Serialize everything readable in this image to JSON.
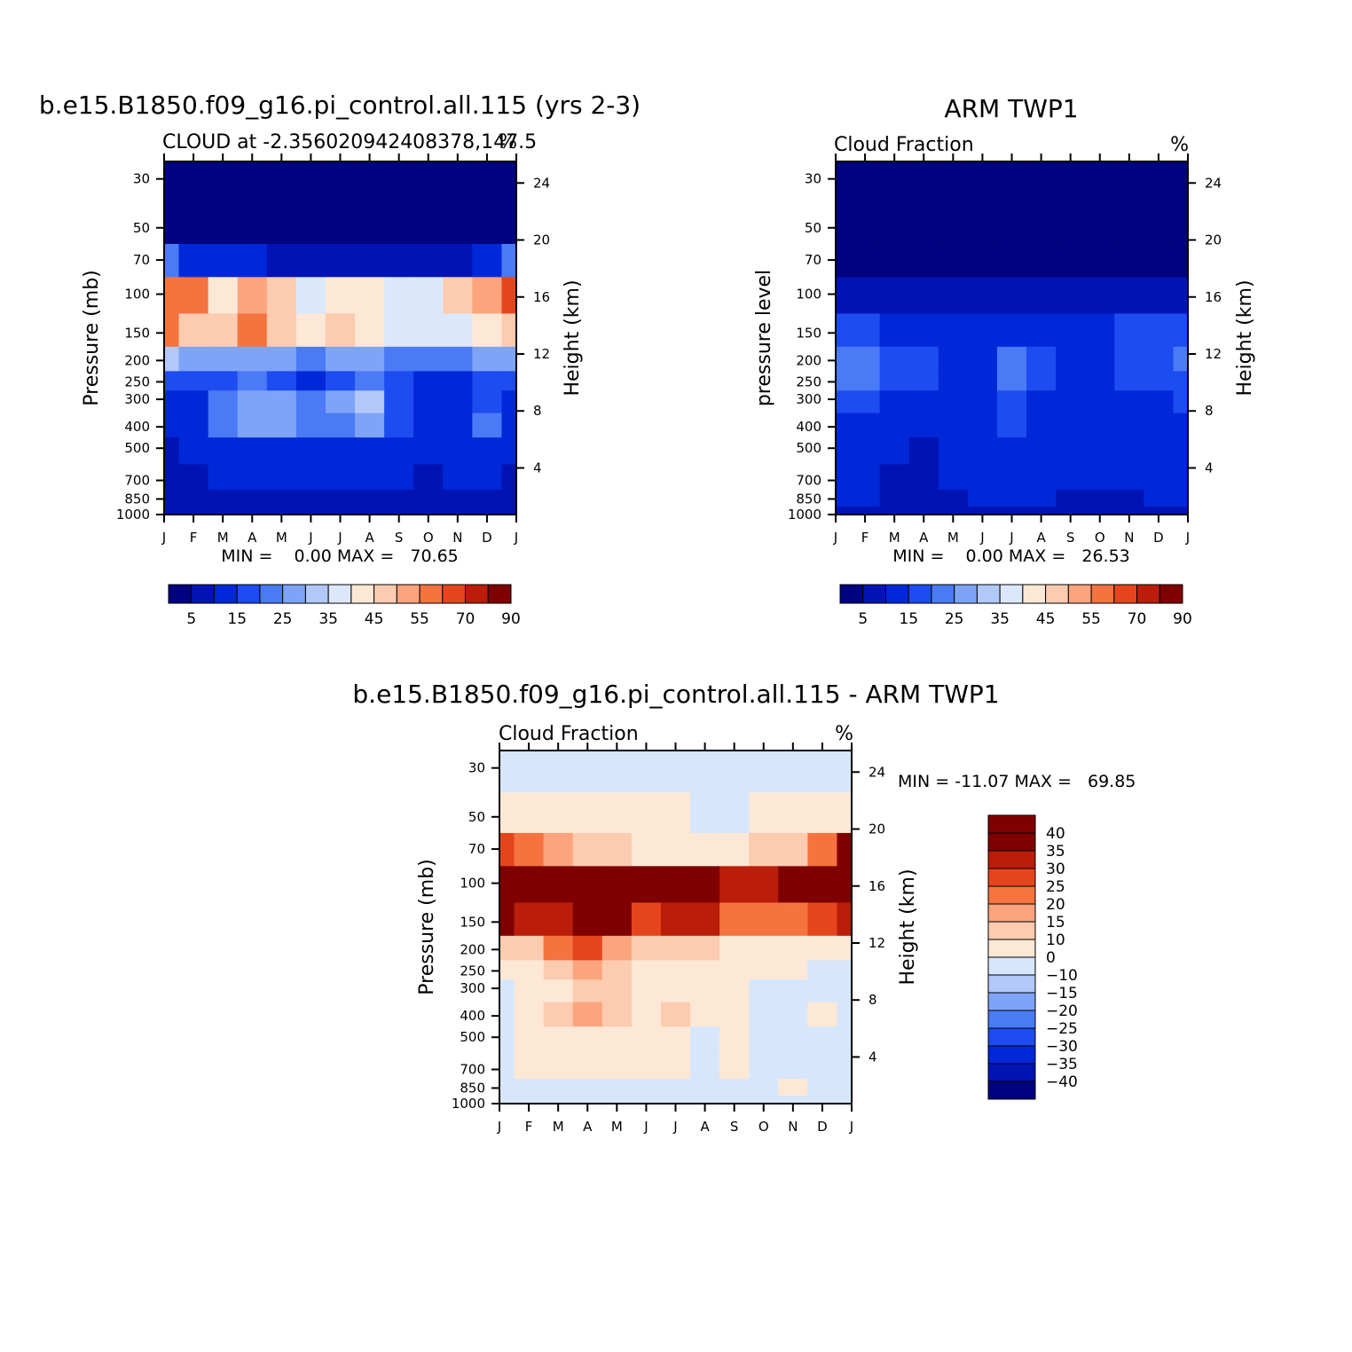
{
  "colors": {
    "palette": [
      "#00037f",
      "#0014b4",
      "#0028d8",
      "#1d4cf0",
      "#4a7af5",
      "#7ea4f7",
      "#b1c8f9",
      "#dbe8fc",
      "#fde8d6",
      "#fdcbb0",
      "#fba47e",
      "#f4733f",
      "#e4451c",
      "#ba1d09",
      "#7f0000"
    ],
    "diff_palette": [
      "#00037f",
      "#0014b4",
      "#0028d8",
      "#1d4cf0",
      "#4a7af5",
      "#7ea4f7",
      "#b1c8f9",
      "#d7e6fb",
      "#fde8d6",
      "#fdcbb0",
      "#fba47e",
      "#f4733f",
      "#e4451c",
      "#ba1d09",
      "#7f0000"
    ]
  },
  "panels": [
    {
      "title": "b.e15.B1850.f09_g16.pi_control.all.115 (yrs 2-3)",
      "subtitle_left": "CLOUD at -2.356020942408378,147.5",
      "subtitle_right": "%",
      "ylabel_left": "Pressure (mb)",
      "ylabel_right": "Height (km)",
      "stats": "MIN =    0.00 MAX =   70.65"
    },
    {
      "title": "ARM TWP1",
      "subtitle_left": "Cloud Fraction",
      "subtitle_right": "%",
      "ylabel_left": "pressure level",
      "ylabel_right": "Height (km)",
      "stats": "MIN =    0.00 MAX =   26.53"
    },
    {
      "title": "b.e15.B1850.f09_g16.pi_control.all.115 - ARM TWP1",
      "subtitle_left": "Cloud Fraction",
      "subtitle_right": "%",
      "ylabel_left": "Pressure (mb)",
      "ylabel_right": "Height (km)",
      "stats": "MIN = -11.07 MAX =   69.85"
    }
  ],
  "chart_data": [
    {
      "type": "heatmap",
      "title": "b.e15.B1850.f09_g16.pi_control.all.115 (yrs 2-3)",
      "subtitle": "CLOUD at -2.356020942408378,147.5",
      "units": "%",
      "xlabel": "",
      "ylabel": "Pressure (mb)",
      "ylabel_right": "Height (km)",
      "x_ticks": [
        "J",
        "F",
        "M",
        "A",
        "M",
        "J",
        "J",
        "A",
        "S",
        "O",
        "N",
        "D",
        "J"
      ],
      "y_ticks": [
        30,
        50,
        70,
        100,
        150,
        200,
        250,
        300,
        400,
        500,
        700,
        850,
        1000
      ],
      "y_right_ticks": [
        4,
        8,
        12,
        16,
        20,
        24
      ],
      "y_scale": "log pressure, reversed",
      "ylim": [
        1000,
        25
      ],
      "colorbar_labels": [
        "5",
        "15",
        "25",
        "35",
        "45",
        "55",
        "70",
        "90"
      ],
      "min": 0.0,
      "max": 70.65,
      "levels": [
        25,
        30,
        50,
        70,
        100,
        150,
        200,
        250,
        300,
        400,
        500,
        700,
        850,
        1000
      ],
      "values": [
        [
          0,
          0,
          0,
          0,
          0,
          0,
          0,
          0,
          0,
          0,
          0,
          0,
          0
        ],
        [
          0,
          0,
          0,
          0,
          0,
          0,
          0,
          0,
          0,
          0,
          0,
          0,
          0
        ],
        [
          2,
          1,
          0,
          0,
          0,
          0,
          0,
          0,
          0,
          0,
          0,
          0,
          2
        ],
        [
          20,
          14,
          12,
          10,
          8,
          6,
          8,
          6,
          5,
          6,
          8,
          10,
          22
        ],
        [
          58,
          55,
          42,
          52,
          45,
          38,
          44,
          40,
          38,
          35,
          46,
          54,
          60
        ],
        [
          55,
          48,
          45,
          56,
          45,
          40,
          48,
          44,
          36,
          35,
          38,
          42,
          48
        ],
        [
          30,
          28,
          26,
          25,
          26,
          24,
          26,
          26,
          22,
          20,
          22,
          25,
          28
        ],
        [
          16,
          18,
          18,
          20,
          18,
          14,
          18,
          22,
          16,
          14,
          14,
          16,
          18
        ],
        [
          12,
          14,
          24,
          28,
          26,
          22,
          26,
          32,
          16,
          12,
          14,
          18,
          14
        ],
        [
          10,
          12,
          22,
          26,
          25,
          20,
          22,
          28,
          16,
          14,
          14,
          20,
          14
        ],
        [
          8,
          10,
          12,
          12,
          14,
          12,
          14,
          14,
          14,
          10,
          12,
          14,
          10
        ],
        [
          6,
          8,
          10,
          10,
          10,
          10,
          12,
          12,
          10,
          8,
          10,
          10,
          8
        ],
        [
          5,
          6,
          8,
          8,
          8,
          8,
          8,
          8,
          8,
          6,
          8,
          8,
          6
        ],
        [
          4,
          4,
          4,
          4,
          4,
          4,
          4,
          4,
          4,
          4,
          4,
          4,
          4
        ]
      ]
    },
    {
      "type": "heatmap",
      "title": "ARM TWP1",
      "subtitle": "Cloud Fraction",
      "units": "%",
      "xlabel": "",
      "ylabel": "pressure level",
      "ylabel_right": "Height (km)",
      "x_ticks": [
        "J",
        "F",
        "M",
        "A",
        "M",
        "J",
        "J",
        "A",
        "S",
        "O",
        "N",
        "D",
        "J"
      ],
      "y_ticks": [
        30,
        50,
        70,
        100,
        150,
        200,
        250,
        300,
        400,
        500,
        700,
        850,
        1000
      ],
      "y_right_ticks": [
        4,
        8,
        12,
        16,
        20,
        24
      ],
      "y_scale": "log pressure, reversed",
      "ylim": [
        1000,
        25
      ],
      "colorbar_labels": [
        "5",
        "15",
        "25",
        "35",
        "45",
        "55",
        "70",
        "90"
      ],
      "min": 0.0,
      "max": 26.53,
      "levels": [
        25,
        30,
        50,
        70,
        100,
        150,
        200,
        250,
        300,
        400,
        500,
        700,
        850,
        1000
      ],
      "values": [
        [
          0,
          0,
          0,
          0,
          0,
          0,
          0,
          0,
          0,
          0,
          0,
          0,
          0
        ],
        [
          0,
          0,
          0,
          0,
          0,
          0,
          0,
          0,
          0,
          0,
          0,
          0,
          0
        ],
        [
          0,
          0,
          0,
          0,
          0,
          0,
          0,
          0,
          0,
          0,
          0,
          0,
          0
        ],
        [
          1,
          1,
          1,
          1,
          1,
          1,
          1,
          1,
          1,
          1,
          1,
          1,
          1
        ],
        [
          8,
          9,
          7,
          6,
          6,
          5,
          4,
          5,
          6,
          7,
          8,
          9,
          9
        ],
        [
          16,
          17,
          14,
          12,
          12,
          12,
          14,
          14,
          13,
          13,
          15,
          16,
          16
        ],
        [
          22,
          24,
          18,
          15,
          14,
          14,
          22,
          16,
          14,
          14,
          18,
          16,
          22
        ],
        [
          20,
          20,
          17,
          15,
          14,
          14,
          20,
          16,
          14,
          14,
          16,
          15,
          18
        ],
        [
          15,
          15,
          14,
          13,
          13,
          13,
          16,
          14,
          13,
          13,
          14,
          13,
          15
        ],
        [
          14,
          14,
          13,
          12,
          13,
          14,
          15,
          14,
          13,
          14,
          13,
          14,
          14
        ],
        [
          13,
          12,
          10,
          8,
          12,
          13,
          14,
          13,
          12,
          11,
          10,
          12,
          13
        ],
        [
          12,
          11,
          9,
          7,
          10,
          12,
          13,
          12,
          11,
          10,
          11,
          12,
          12
        ],
        [
          10,
          10,
          9,
          8,
          9,
          10,
          10,
          10,
          9,
          9,
          9,
          10,
          10
        ],
        [
          4,
          4,
          4,
          4,
          4,
          4,
          4,
          4,
          4,
          4,
          4,
          4,
          4
        ]
      ]
    },
    {
      "type": "heatmap",
      "title": "b.e15.B1850.f09_g16.pi_control.all.115 - ARM TWP1",
      "subtitle": "Cloud Fraction",
      "units": "%",
      "xlabel": "",
      "ylabel": "Pressure (mb)",
      "ylabel_right": "Height (km)",
      "x_ticks": [
        "J",
        "F",
        "M",
        "A",
        "M",
        "J",
        "J",
        "A",
        "S",
        "O",
        "N",
        "D",
        "J"
      ],
      "y_ticks": [
        30,
        50,
        70,
        100,
        150,
        200,
        250,
        300,
        400,
        500,
        700,
        850,
        1000
      ],
      "y_right_ticks": [
        4,
        8,
        12,
        16,
        20,
        24
      ],
      "y_scale": "log pressure, reversed",
      "ylim": [
        1000,
        25
      ],
      "colorbar_labels": [
        "40",
        "35",
        "30",
        "25",
        "20",
        "15",
        "10",
        "0",
        "-10",
        "-15",
        "-20",
        "-25",
        "-30",
        "-35",
        "-40"
      ],
      "min": -11.07,
      "max": 69.85,
      "levels": [
        25,
        30,
        50,
        70,
        100,
        150,
        200,
        250,
        300,
        400,
        500,
        700,
        850,
        1000
      ],
      "values": [
        [
          -1,
          -1,
          -1,
          -1,
          -1,
          -1,
          -1,
          -1,
          -1,
          -1,
          -1,
          -1,
          -1
        ],
        [
          -1,
          -1,
          -1,
          -1,
          -1,
          -1,
          -1,
          -1,
          -1,
          -1,
          -1,
          -1,
          -1
        ],
        [
          2,
          2,
          2,
          2,
          2,
          2,
          2,
          -1,
          -1,
          1,
          2,
          2,
          2
        ],
        [
          28,
          20,
          15,
          12,
          10,
          8,
          8,
          8,
          6,
          10,
          14,
          20,
          35
        ],
        [
          50,
          46,
          42,
          46,
          42,
          36,
          42,
          38,
          32,
          30,
          38,
          46,
          52
        ],
        [
          38,
          30,
          30,
          45,
          35,
          28,
          30,
          30,
          22,
          22,
          22,
          26,
          32
        ],
        [
          10,
          14,
          24,
          26,
          18,
          12,
          12,
          14,
          8,
          6,
          6,
          8,
          6
        ],
        [
          4,
          6,
          10,
          18,
          12,
          4,
          6,
          8,
          2,
          2,
          2,
          -1,
          -2
        ],
        [
          -2,
          2,
          8,
          14,
          12,
          4,
          8,
          6,
          2,
          -1,
          -2,
          -2,
          -2
        ],
        [
          -4,
          2,
          12,
          18,
          10,
          6,
          14,
          8,
          2,
          -1,
          -3,
          2,
          -3
        ],
        [
          -5,
          4,
          6,
          6,
          4,
          2,
          4,
          -1,
          2,
          -1,
          -1,
          -2,
          -3
        ],
        [
          -4,
          2,
          2,
          2,
          2,
          2,
          2,
          -1,
          2,
          -1,
          -1,
          -2,
          -2
        ],
        [
          -3,
          -1,
          -1,
          -1,
          -1,
          -1,
          -1,
          -1,
          -1,
          -1,
          2,
          -1,
          -2
        ],
        [
          -1,
          -1,
          -1,
          -1,
          -1,
          -1,
          -1,
          -1,
          -1,
          -1,
          -1,
          -1,
          -1
        ]
      ]
    }
  ]
}
